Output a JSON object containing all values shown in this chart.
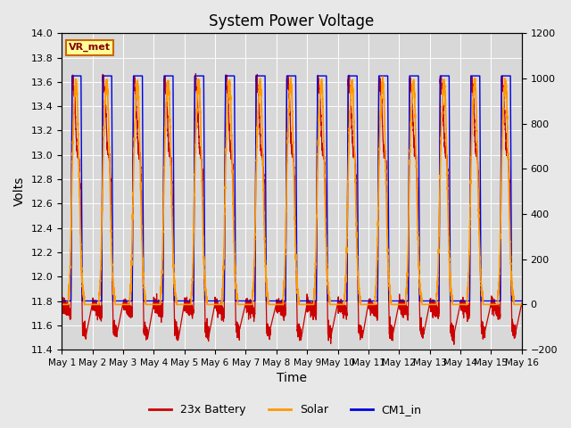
{
  "title": "System Power Voltage",
  "ylabel_left": "Volts",
  "xlabel": "Time",
  "ylim_left": [
    11.4,
    14.0
  ],
  "ylim_right": [
    -200,
    1200
  ],
  "n_days": 15,
  "background_color": "#e8e8e8",
  "plot_bg_color": "#d8d8d8",
  "battery_color": "#cc0000",
  "solar_color": "#ff9900",
  "cm1_color": "#0000dd",
  "legend_labels": [
    "23x Battery",
    "Solar",
    "CM1_in"
  ],
  "vr_met_label": "VR_met",
  "tick_labels": [
    "May 1",
    "May 2",
    "May 3",
    "May 4",
    "May 5",
    "May 6",
    "May 7",
    "May 8",
    "May 9",
    "May 10",
    "May 11",
    "May 12",
    "May 13",
    "May 14",
    "May 15",
    "May 16"
  ],
  "left_ticks": [
    11.4,
    11.6,
    11.8,
    12.0,
    12.2,
    12.4,
    12.6,
    12.8,
    13.0,
    13.2,
    13.4,
    13.6,
    13.8,
    14.0
  ],
  "right_ticks": [
    -200,
    0,
    200,
    400,
    600,
    800,
    1000,
    1200
  ]
}
